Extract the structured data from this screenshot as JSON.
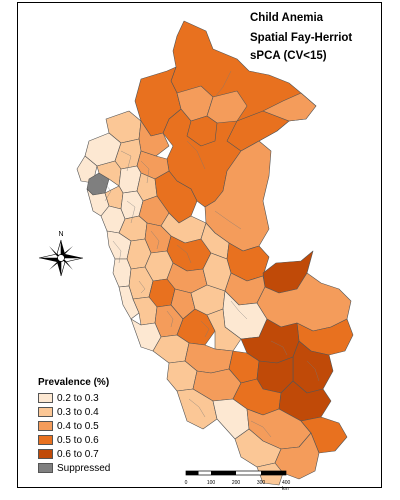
{
  "title": {
    "line1": "Child Anemia",
    "line2": "Spatial Fay-Herriot",
    "line3": "sPCA (CV<15)"
  },
  "legend": {
    "title": "Prevalence (%)",
    "items": [
      {
        "label": "0.2 to 0.3",
        "color": "#fde8d2"
      },
      {
        "label": "0.3 to 0.4",
        "color": "#fbc796"
      },
      {
        "label": "0.4 to 0.5",
        "color": "#f49c5b"
      },
      {
        "label": "0.5 to 0.6",
        "color": "#e8711f"
      },
      {
        "label": "0.6 to 0.7",
        "color": "#c04a08"
      },
      {
        "label": "Suppressed",
        "color": "#7f7f7f"
      }
    ]
  },
  "north_arrow": {
    "label": "N"
  },
  "scale_bar": {
    "labels": [
      "0",
      "100",
      "200",
      "300",
      "400 km"
    ]
  },
  "border_color": "#555555"
}
